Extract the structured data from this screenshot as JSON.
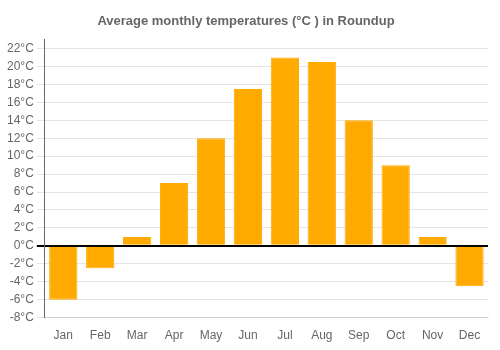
{
  "chart_data": {
    "type": "bar",
    "title": "Average monthly temperatures (°C ) in Roundup",
    "categories": [
      "Jan",
      "Feb",
      "Mar",
      "Apr",
      "May",
      "Jun",
      "Jul",
      "Aug",
      "Sep",
      "Oct",
      "Nov",
      "Dec"
    ],
    "values": [
      -6,
      -2.5,
      1,
      7,
      12,
      17.5,
      21,
      20.5,
      14,
      9,
      1,
      -4.5
    ],
    "color": "#FFAA00",
    "ylim": [
      -8,
      23
    ],
    "yticks": [
      {
        "value": -8,
        "label": "-8°C"
      },
      {
        "value": -6,
        "label": "-6°C"
      },
      {
        "value": -4,
        "label": "-4°C"
      },
      {
        "value": -2,
        "label": "-2°C"
      },
      {
        "value": 0,
        "label": "0°C"
      },
      {
        "value": 2,
        "label": "2°C"
      },
      {
        "value": 4,
        "label": "4°C"
      },
      {
        "value": 6,
        "label": "6°C"
      },
      {
        "value": 8,
        "label": "8°C"
      },
      {
        "value": 10,
        "label": "10°C"
      },
      {
        "value": 12,
        "label": "12°C"
      },
      {
        "value": 14,
        "label": "14°C"
      },
      {
        "value": 16,
        "label": "16°C"
      },
      {
        "value": 18,
        "label": "18°C"
      },
      {
        "value": 20,
        "label": "20°C"
      },
      {
        "value": 22,
        "label": "22°C"
      }
    ],
    "grid": true
  }
}
